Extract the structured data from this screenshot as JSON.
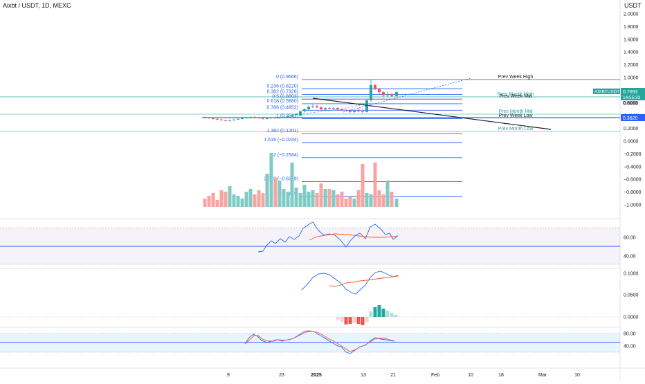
{
  "header": {
    "symbol_title": "Aixbt / USDT, 1D, MEXC",
    "quote_currency": "USDT"
  },
  "price_axis": {
    "labels": [
      "2.0000",
      "1.8000",
      "1.6000",
      "1.4000",
      "1.2000",
      "1.0000",
      "0.8000",
      "0.6000",
      "0.4000",
      "0.2000",
      "0.0000",
      "−0.2000",
      "−0.4000",
      "−0.6000",
      "−0.8000",
      "−1.0000"
    ]
  },
  "current_price": {
    "ticker_label": "AIXBTUSDT",
    "value": "0.7693",
    "countdown": "14:55:33"
  },
  "line_marker": {
    "value": "0.3620"
  },
  "fibonacci": {
    "levels": [
      {
        "label": "0 (0.9666)",
        "value": 0.9666
      },
      {
        "label": "0.236 (0.8220)",
        "value": 0.822
      },
      {
        "label": "0.382 (0.7326)",
        "value": 0.7326
      },
      {
        "label": "0.5 (0.6603)",
        "value": 0.6603
      },
      {
        "label": "0.618 (0.5880)",
        "value": 0.588
      },
      {
        "label": "0.786 (0.4852)",
        "value": 0.4852
      },
      {
        "label": "1 (0.3541)",
        "value": 0.3541
      },
      {
        "label": "1.382 (0.1201)",
        "value": 0.1201
      },
      {
        "label": "1.618 (−0.0244)",
        "value": -0.0244
      },
      {
        "label": "2 (−0.2584)",
        "value": -0.2584
      },
      {
        "label": "2.618 (−0.6369)",
        "value": -0.6369
      },
      {
        "label": "3 (−0.8709)",
        "value": -0.8709
      }
    ]
  },
  "levels": {
    "prev_week_high": "Prev Week High",
    "prev_month_high": "Prev Month High",
    "prev_week_mid": "Prev Week Mid",
    "prev_month_mid": "Prev Month Mid",
    "prev_week_low": "Prev Week Low",
    "prev_month_low": "Prev Month Low"
  },
  "price_label_0_6": "0.6000",
  "rsi_axis": {
    "labels": [
      "60.00",
      "40.00"
    ]
  },
  "macd_axis": {
    "labels": [
      "0.1000",
      "0.0500",
      "0.0000"
    ]
  },
  "stoch_axis": {
    "labels": [
      "80.00",
      "40.00"
    ]
  },
  "time_axis": {
    "labels": [
      "9",
      "23",
      "2025",
      "13",
      "21",
      "Feb",
      "10",
      "18",
      "Mar",
      "10"
    ]
  },
  "colors": {
    "up": "#26a69a",
    "down": "#ef5350",
    "vol_up": "#80cbc4",
    "vol_down": "#f7a4a2",
    "fib": "#2962ff",
    "rsi_band": "#7e57c2",
    "stoch_band": "#2196f3",
    "signal": "#ff5722",
    "trend": "#131722"
  }
}
